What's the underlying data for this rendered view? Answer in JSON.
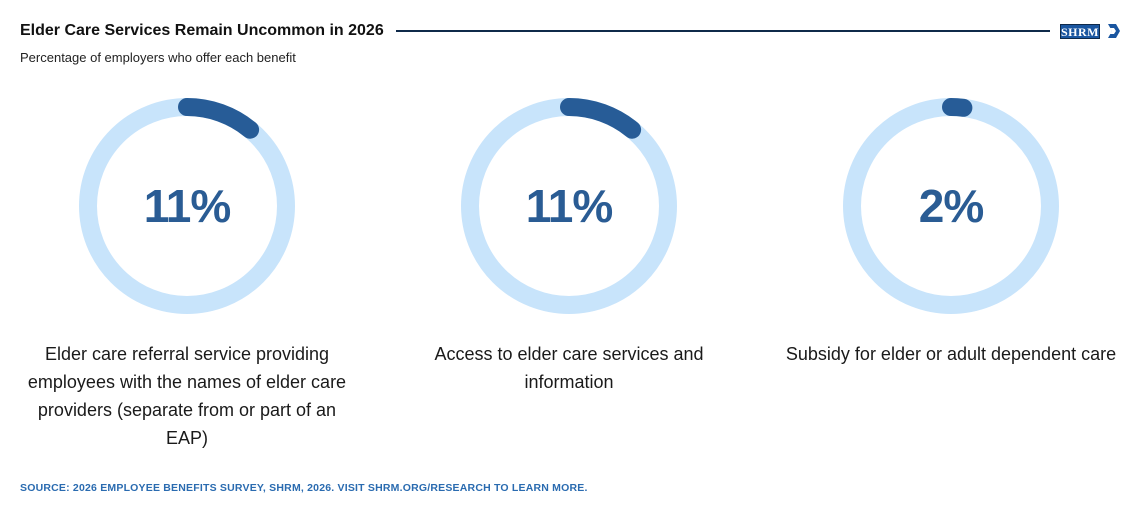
{
  "header": {
    "title": "Elder Care Services Remain Uncommon in 2026",
    "logo_text": "SHRM"
  },
  "subtitle": "Percentage of employers who offer each benefit",
  "source": "SOURCE: 2026 EMPLOYEE BENEFITS SURVEY, SHRM, 2026. VISIT SHRM.ORG/RESEARCH TO LEARN MORE.",
  "colors": {
    "track": "#c8e4fb",
    "fill": "#275c97",
    "percent_text": "#2a5c94"
  },
  "chart_data": {
    "type": "pie",
    "title": "Elder Care Services Remain Uncommon in 2026",
    "subtitle": "Percentage of employers who offer each benefit",
    "unit": "%",
    "categories": [
      "Elder care referral service providing employees with the names of elder care providers (separate from or part of an EAP)",
      "Access to elder care services and information",
      "Subsidy for elder or adult dependent care"
    ],
    "values": [
      11,
      11,
      2
    ],
    "display_values": [
      "11%",
      "11%",
      "2%"
    ]
  }
}
